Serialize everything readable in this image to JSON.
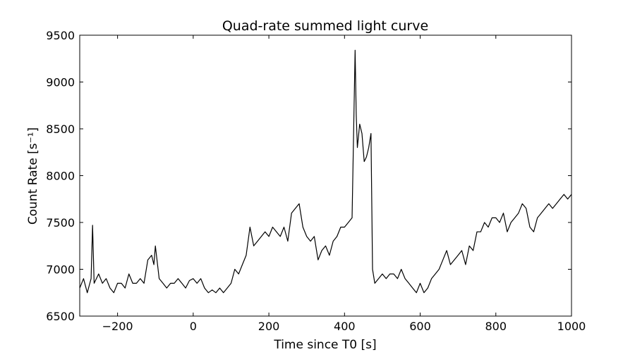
{
  "chart_data": {
    "type": "line",
    "title": "Quad-rate summed light curve",
    "xlabel": "Time since T0 [s]",
    "ylabel": "Count Rate [s⁻¹]",
    "xlim": [
      -300,
      1000
    ],
    "ylim": [
      6500,
      9500
    ],
    "xticks": [
      -200,
      0,
      200,
      400,
      600,
      800,
      1000
    ],
    "xtick_labels": [
      "−200",
      "0",
      "200",
      "400",
      "600",
      "800",
      "1000"
    ],
    "yticks": [
      6500,
      7000,
      7500,
      8000,
      8500,
      9000,
      9500
    ],
    "ytick_labels": [
      "6500",
      "7000",
      "7500",
      "8000",
      "8500",
      "9000",
      "9500"
    ],
    "grid": false,
    "line_color": "#000000",
    "series": [
      {
        "x": [
          -300,
          -290,
          -280,
          -270,
          -266,
          -262,
          -250,
          -240,
          -230,
          -220,
          -210,
          -200,
          -190,
          -180,
          -170,
          -160,
          -150,
          -140,
          -130,
          -120,
          -110,
          -104,
          -100,
          -90,
          -80,
          -70,
          -60,
          -50,
          -40,
          -30,
          -20,
          -10,
          0,
          10,
          20,
          30,
          40,
          50,
          60,
          70,
          80,
          90,
          100,
          110,
          120,
          130,
          140,
          150,
          160,
          170,
          180,
          190,
          200,
          210,
          220,
          230,
          240,
          250,
          260,
          270,
          280,
          290,
          300,
          310,
          320,
          330,
          340,
          350,
          360,
          370,
          380,
          390,
          400,
          410,
          420,
          428,
          431,
          434,
          440,
          446,
          452,
          458,
          464,
          470,
          474,
          480,
          490,
          500,
          510,
          520,
          530,
          540,
          550,
          560,
          570,
          580,
          590,
          600,
          610,
          620,
          630,
          640,
          650,
          660,
          670,
          680,
          690,
          700,
          710,
          720,
          730,
          740,
          750,
          760,
          770,
          780,
          790,
          800,
          810,
          820,
          830,
          840,
          850,
          860,
          870,
          880,
          890,
          900,
          910,
          920,
          930,
          940,
          950,
          960,
          970,
          980,
          990,
          1000
        ],
        "y": [
          6800,
          6900,
          6750,
          6900,
          7470,
          6850,
          6950,
          6850,
          6900,
          6800,
          6750,
          6850,
          6850,
          6800,
          6950,
          6850,
          6850,
          6900,
          6850,
          7100,
          7150,
          7050,
          7250,
          6900,
          6850,
          6800,
          6850,
          6850,
          6900,
          6850,
          6800,
          6880,
          6900,
          6850,
          6900,
          6800,
          6750,
          6780,
          6750,
          6800,
          6750,
          6800,
          6850,
          7000,
          6950,
          7050,
          7150,
          7450,
          7250,
          7300,
          7350,
          7400,
          7350,
          7450,
          7400,
          7350,
          7450,
          7300,
          7600,
          7650,
          7700,
          7450,
          7350,
          7300,
          7350,
          7100,
          7200,
          7250,
          7150,
          7300,
          7350,
          7450,
          7450,
          7500,
          7550,
          9340,
          8650,
          8300,
          8550,
          8450,
          8150,
          8200,
          8300,
          8450,
          7000,
          6850,
          6900,
          6950,
          6900,
          6950,
          6950,
          6900,
          7000,
          6900,
          6850,
          6800,
          6750,
          6850,
          6750,
          6800,
          6900,
          6950,
          7000,
          7100,
          7200,
          7050,
          7100,
          7150,
          7200,
          7050,
          7250,
          7200,
          7400,
          7400,
          7500,
          7450,
          7550,
          7550,
          7500,
          7600,
          7400,
          7500,
          7550,
          7600,
          7700,
          7650,
          7450,
          7400,
          7550,
          7600,
          7650,
          7700,
          7650,
          7700,
          7750,
          7800,
          7750,
          7800
        ]
      }
    ]
  }
}
